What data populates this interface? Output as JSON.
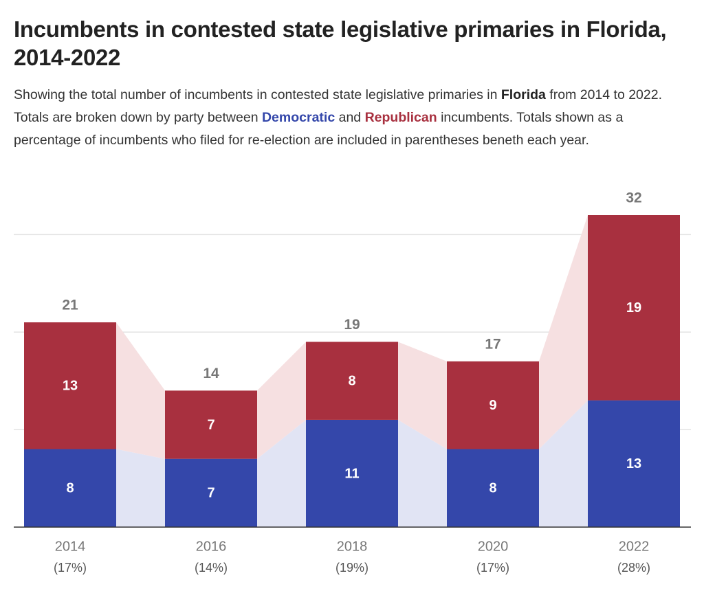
{
  "chart_data": {
    "type": "stacked_bar",
    "title": "Incumbents in contested state legislative primaries in Florida, 2014-2022",
    "subtitle": [
      "Showing the total number of incumbents in contested state legislative primaries in ",
      "Florida",
      " from 2014 to 2022. Totals are broken down by party between ",
      " and ",
      " incumbents. Totals shown as a percentage of incumbents who filed for re-election are included in parentheses beneth each year."
    ],
    "categories": [
      "2014",
      "2016",
      "2018",
      "2020",
      "2022"
    ],
    "category_notes": [
      "(17%)",
      "(14%)",
      "(19%)",
      "(17%)",
      "(28%)"
    ],
    "series": [
      {
        "name": "Democratic",
        "color": "#3447aa",
        "band_color": "#e1e4f4",
        "values": [
          8,
          7,
          11,
          8,
          13
        ]
      },
      {
        "name": "Republican",
        "color": "#a8303f",
        "band_color": "#f6e0e1",
        "values": [
          13,
          7,
          8,
          9,
          19
        ]
      }
    ],
    "totals": [
      21,
      14,
      19,
      17,
      32
    ],
    "ylim": [
      0,
      32
    ],
    "yticks": [
      0,
      10,
      20,
      30
    ],
    "grid": true
  }
}
